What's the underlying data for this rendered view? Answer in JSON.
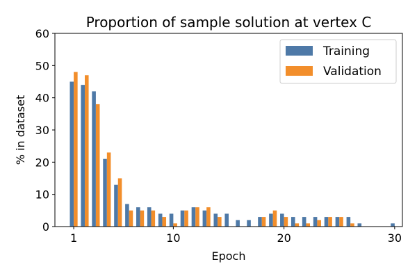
{
  "chart_data": {
    "type": "bar",
    "title": "Proportion of sample solution at vertex C",
    "xlabel": "Epoch",
    "ylabel": "% in dataset",
    "ylim": [
      0,
      60
    ],
    "xlim": [
      -0.7,
      30.7
    ],
    "yticks": [
      0,
      10,
      20,
      30,
      40,
      50,
      60
    ],
    "xticks": [
      1,
      10,
      20,
      30
    ],
    "grid": false,
    "legend_position": "top-right",
    "colors": {
      "Training": "#4e79a7",
      "Validation": "#f28e2b"
    },
    "x": [
      1,
      2,
      3,
      4,
      5,
      6,
      7,
      8,
      9,
      10,
      11,
      12,
      13,
      14,
      15,
      16,
      17,
      18,
      19,
      20,
      21,
      22,
      23,
      24,
      25,
      26,
      27,
      28,
      29,
      30
    ],
    "series": [
      {
        "name": "Training",
        "values": [
          45,
          44,
          42,
          21,
          13,
          7,
          6,
          6,
          4,
          4,
          5,
          6,
          5,
          4,
          4,
          2,
          2,
          3,
          4,
          4,
          3,
          3,
          3,
          3,
          3,
          3,
          1,
          0,
          0,
          1
        ]
      },
      {
        "name": "Validation",
        "values": [
          48,
          47,
          38,
          23,
          15,
          5,
          5,
          5,
          3,
          1,
          5,
          6,
          6,
          3,
          0,
          0,
          0,
          3,
          5,
          3,
          1,
          1,
          2,
          3,
          3,
          1,
          0,
          0,
          0,
          0
        ]
      }
    ]
  }
}
